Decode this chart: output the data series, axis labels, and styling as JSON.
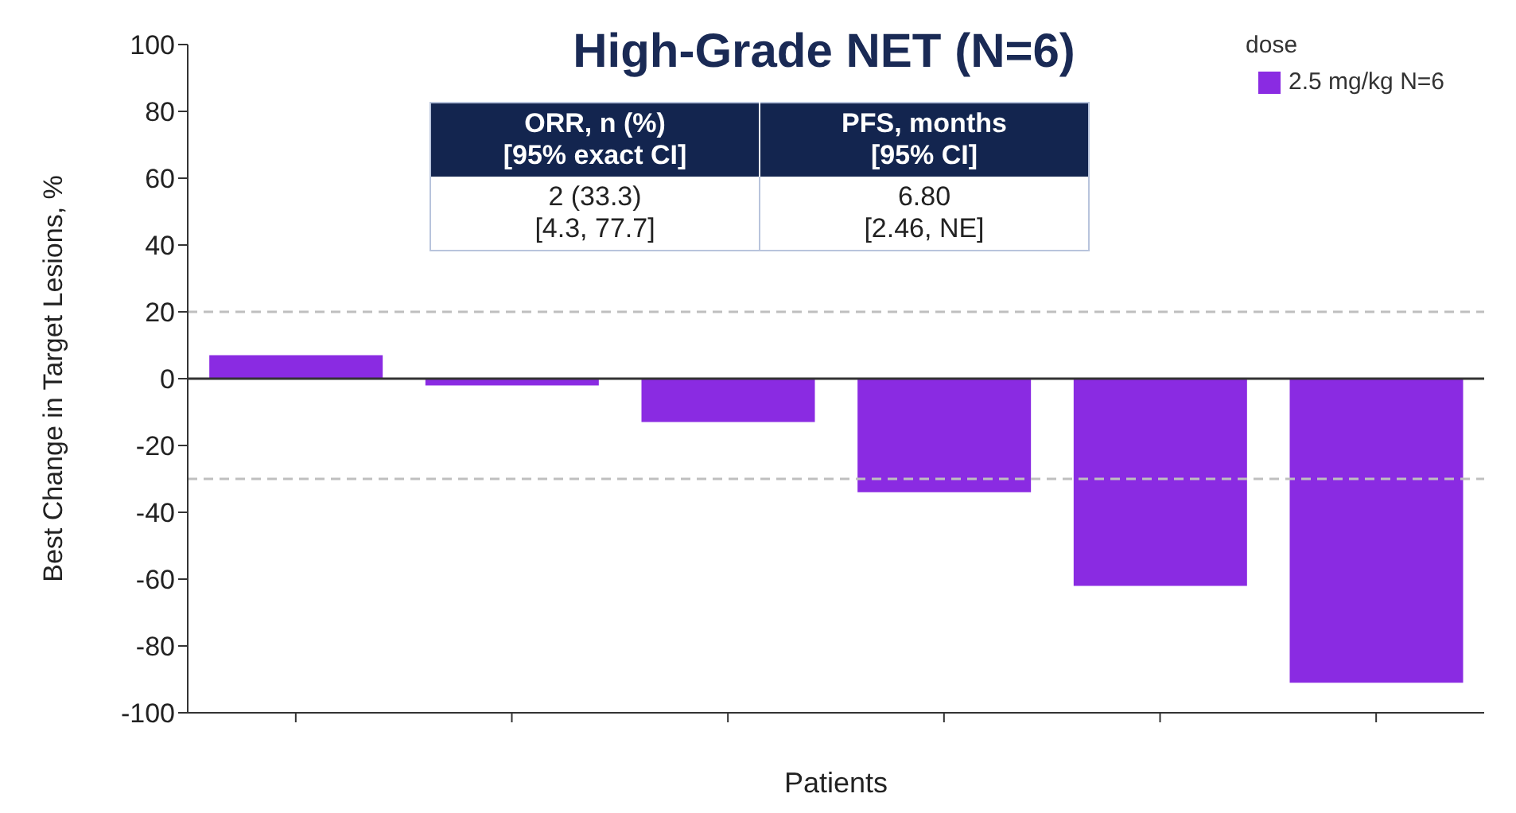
{
  "chart_data": {
    "type": "bar",
    "title": "High-Grade NET (N=6)",
    "xlabel": "Patients",
    "ylabel": "Best Change in Target Lesions, %",
    "legend_title": "dose",
    "legend": "top right",
    "categories": [
      null,
      null,
      null,
      null,
      null,
      null
    ],
    "series": [
      {
        "name": "2.5 mg/kg N=6",
        "color": "#8a2be2",
        "values": [
          7,
          -2,
          -13,
          -34,
          -62,
          -91
        ]
      }
    ],
    "ylim": [
      -100,
      100
    ],
    "yticks": [
      -100,
      -80,
      -60,
      -40,
      -20,
      0,
      20,
      40,
      60,
      80,
      100
    ],
    "ref_lines": [
      {
        "axis": "y",
        "value": 20,
        "color": "#bfbfbf",
        "line_style": "dashed"
      },
      {
        "axis": "y",
        "value": -30,
        "color": "#bfbfbf",
        "line_style": "dashed"
      },
      {
        "axis": "y",
        "value": 0,
        "color": "#333333",
        "line_style": "solid"
      }
    ],
    "annotations": [
      "ORR, n (%)\n[95% exact CI]",
      "PFS, months\n[95% CI]",
      "2 (33.3)\n[4.3, 77.7]",
      "6.80\n[2.46, NE]"
    ]
  }
}
